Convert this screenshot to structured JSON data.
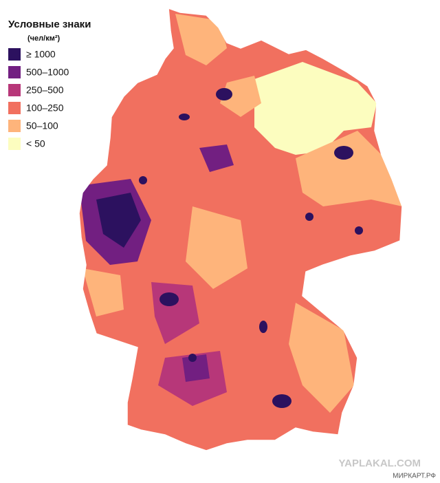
{
  "legend": {
    "title": "Условные знаки",
    "subtitle": "(чел/км²)",
    "items": [
      {
        "label": "≥ 1000",
        "color": "#2c115f"
      },
      {
        "label": "500–1000",
        "color": "#721f81"
      },
      {
        "label": "250–500",
        "color": "#b73779"
      },
      {
        "label": "100–250",
        "color": "#f1705f"
      },
      {
        "label": "50–100",
        "color": "#feb47b"
      },
      {
        "label": "< 50",
        "color": "#fcfdbf"
      }
    ]
  },
  "watermarks": [
    "YAPLAKAL.COM",
    "МИРКАРТ.РФ"
  ]
}
